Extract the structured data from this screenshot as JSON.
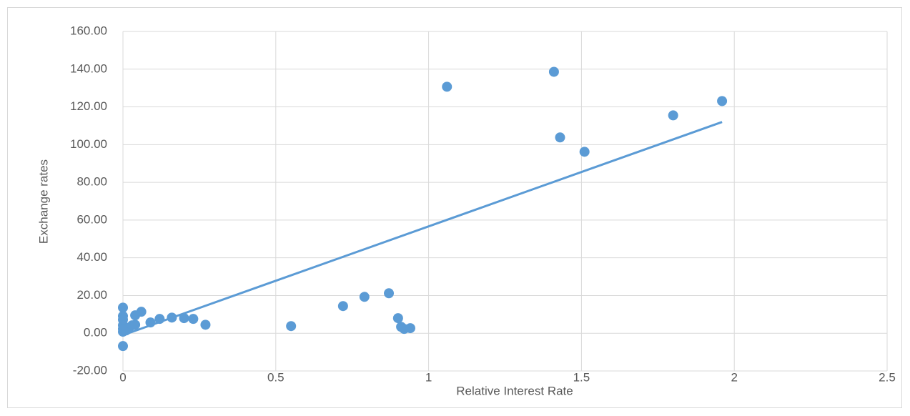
{
  "chart_data": {
    "type": "scatter",
    "x_label": "Relative Interest Rate",
    "y_label": "Exchange rates",
    "color": "#5b9bd5",
    "grid": true,
    "x": [
      0,
      0,
      0,
      0,
      0,
      0,
      0,
      0.01,
      0.02,
      0.03,
      0.04,
      0.04,
      0.06,
      0.09,
      0.12,
      0.16,
      0.2,
      0.23,
      0.27,
      0.55,
      0.72,
      0.79,
      0.87,
      0.9,
      0.91,
      0.92,
      0.94,
      1.06,
      1.41,
      1.43,
      1.51,
      1.8,
      1.96
    ],
    "values": [
      13.6,
      9.1,
      7.2,
      4.2,
      2.3,
      0.8,
      -6.8,
      1.5,
      3.0,
      4.2,
      4.5,
      9.5,
      11.4,
      5.7,
      7.6,
      8.3,
      8.0,
      7.6,
      4.5,
      3.8,
      14.4,
      19.3,
      21.2,
      8.0,
      3.4,
      2.3,
      2.7,
      130.7,
      138.6,
      103.8,
      96.2,
      115.5,
      123.1
    ],
    "trendline": {
      "x": [
        0,
        1.96
      ],
      "values": [
        -1,
        112
      ]
    },
    "xlim": [
      0,
      2.5
    ],
    "xticks": [
      0,
      0.5,
      1,
      1.5,
      2,
      2.5
    ],
    "ylim": [
      -20,
      160
    ],
    "yticks": [
      {
        "value": -20,
        "label": "-20.00"
      },
      {
        "value": 0,
        "label": "0.00"
      },
      {
        "value": 20,
        "label": "20.00"
      },
      {
        "value": 40,
        "label": "40.00"
      },
      {
        "value": 60,
        "label": "60.00"
      },
      {
        "value": 80,
        "label": "80.00"
      },
      {
        "value": 100,
        "label": "100.00"
      },
      {
        "value": 120,
        "label": "120.00"
      },
      {
        "value": 140,
        "label": "140.00"
      },
      {
        "value": 160,
        "label": "160.00"
      }
    ]
  }
}
